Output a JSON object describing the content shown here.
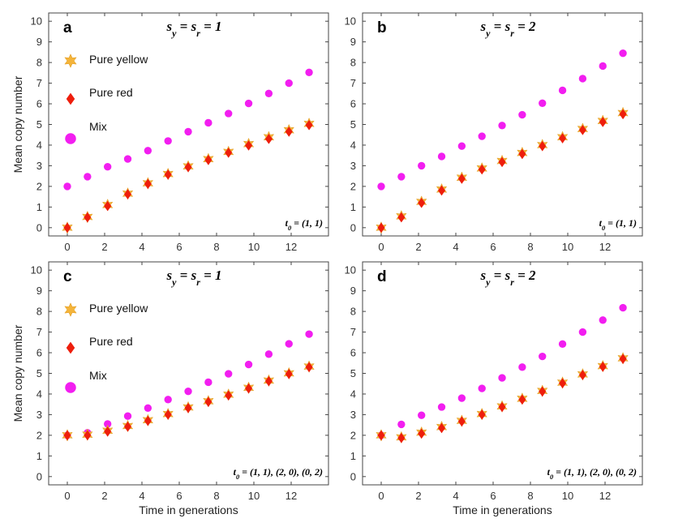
{
  "chart_data": [
    {
      "type": "scatter",
      "panel_label": "a",
      "title": "s_y = s_r = 1",
      "annotation": "t_0 = (1, 1)",
      "xlabel": "",
      "ylabel": "Mean copy number",
      "xlim": [
        -1,
        14
      ],
      "ylim": [
        -0.4,
        10.4
      ],
      "xticks": [
        0,
        2,
        4,
        6,
        8,
        10,
        12
      ],
      "yticks": [
        0,
        1,
        2,
        3,
        4,
        5,
        6,
        7,
        8,
        9,
        10
      ],
      "legend": [
        "Pure yellow",
        "Pure red",
        "Mix"
      ],
      "x": [
        0,
        1.08,
        2.16,
        3.24,
        4.32,
        5.4,
        6.48,
        7.56,
        8.64,
        9.72,
        10.8,
        11.88,
        12.96
      ],
      "series": [
        {
          "name": "Pure yellow",
          "values": [
            0,
            0.52,
            1.1,
            1.65,
            2.15,
            2.6,
            2.97,
            3.32,
            3.67,
            4.05,
            4.38,
            4.72,
            5.03
          ]
        },
        {
          "name": "Pure red",
          "values": [
            0,
            0.5,
            1.05,
            1.62,
            2.12,
            2.57,
            2.93,
            3.28,
            3.63,
            3.98,
            4.3,
            4.65,
            4.97
          ]
        },
        {
          "name": "Mix",
          "values": [
            2,
            2.47,
            2.95,
            3.33,
            3.73,
            4.2,
            4.65,
            5.08,
            5.53,
            6.02,
            6.5,
            7.0,
            7.52
          ]
        }
      ]
    },
    {
      "type": "scatter",
      "panel_label": "b",
      "title": "s_y = s_r = 2",
      "annotation": "t_0 = (1, 1)",
      "xlabel": "",
      "ylabel": "",
      "xlim": [
        -1,
        14
      ],
      "ylim": [
        -0.4,
        10.4
      ],
      "xticks": [
        0,
        2,
        4,
        6,
        8,
        10,
        12
      ],
      "yticks": [
        0,
        1,
        2,
        3,
        4,
        5,
        6,
        7,
        8,
        9,
        10
      ],
      "legend": [],
      "x": [
        0,
        1.08,
        2.16,
        3.24,
        4.32,
        5.4,
        6.48,
        7.56,
        8.64,
        9.72,
        10.8,
        11.88,
        12.96
      ],
      "series": [
        {
          "name": "Pure yellow",
          "values": [
            0,
            0.55,
            1.25,
            1.85,
            2.42,
            2.87,
            3.23,
            3.62,
            4.0,
            4.38,
            4.78,
            5.17,
            5.55
          ]
        },
        {
          "name": "Pure red",
          "values": [
            0,
            0.5,
            1.2,
            1.8,
            2.37,
            2.82,
            3.18,
            3.57,
            3.95,
            4.33,
            4.73,
            5.12,
            5.5
          ]
        },
        {
          "name": "Mix",
          "values": [
            2,
            2.47,
            3.0,
            3.45,
            3.95,
            4.43,
            4.95,
            5.47,
            6.03,
            6.65,
            7.22,
            7.83,
            8.45
          ]
        }
      ]
    },
    {
      "type": "scatter",
      "panel_label": "c",
      "title": "s_y = s_r = 1",
      "annotation": "t_0 = (1, 1), (2, 0), (0, 2)",
      "xlabel": "Time in generations",
      "ylabel": "Mean copy number",
      "xlim": [
        -1,
        14
      ],
      "ylim": [
        -0.4,
        10.4
      ],
      "xticks": [
        0,
        2,
        4,
        6,
        8,
        10,
        12
      ],
      "yticks": [
        0,
        1,
        2,
        3,
        4,
        5,
        6,
        7,
        8,
        9,
        10
      ],
      "legend": [
        "Pure yellow",
        "Pure red",
        "Mix"
      ],
      "x": [
        0,
        1.08,
        2.16,
        3.24,
        4.32,
        5.4,
        6.48,
        7.56,
        8.64,
        9.72,
        10.8,
        11.88,
        12.96
      ],
      "series": [
        {
          "name": "Pure yellow",
          "values": [
            2,
            2.03,
            2.22,
            2.45,
            2.73,
            3.03,
            3.35,
            3.65,
            3.97,
            4.3,
            4.65,
            5.0,
            5.33
          ]
        },
        {
          "name": "Pure red",
          "values": [
            2,
            2.0,
            2.18,
            2.42,
            2.7,
            3.0,
            3.32,
            3.62,
            3.93,
            4.27,
            4.62,
            4.97,
            5.3
          ]
        },
        {
          "name": "Mix",
          "values": [
            2,
            2.12,
            2.55,
            2.93,
            3.32,
            3.73,
            4.13,
            4.57,
            4.98,
            5.43,
            5.93,
            6.43,
            6.9
          ]
        }
      ]
    },
    {
      "type": "scatter",
      "panel_label": "d",
      "title": "s_y = s_r = 2",
      "annotation": "t_0 = (1, 1), (2, 0), (0, 2)",
      "xlabel": "Time in generations",
      "ylabel": "",
      "xlim": [
        -1,
        14
      ],
      "ylim": [
        -0.4,
        10.4
      ],
      "xticks": [
        0,
        2,
        4,
        6,
        8,
        10,
        12
      ],
      "yticks": [
        0,
        1,
        2,
        3,
        4,
        5,
        6,
        7,
        8,
        9,
        10
      ],
      "legend": [],
      "x": [
        0,
        1.08,
        2.16,
        3.24,
        4.32,
        5.4,
        6.48,
        7.56,
        8.64,
        9.72,
        10.8,
        11.88,
        12.96
      ],
      "series": [
        {
          "name": "Pure yellow",
          "values": [
            2,
            1.9,
            2.13,
            2.4,
            2.7,
            3.03,
            3.4,
            3.77,
            4.15,
            4.55,
            4.95,
            5.35,
            5.73
          ]
        },
        {
          "name": "Pure red",
          "values": [
            2,
            1.87,
            2.08,
            2.35,
            2.67,
            3.0,
            3.37,
            3.73,
            4.12,
            4.52,
            4.92,
            5.32,
            5.7
          ]
        },
        {
          "name": "Mix",
          "values": [
            2,
            2.53,
            2.97,
            3.37,
            3.8,
            4.27,
            4.78,
            5.3,
            5.82,
            6.42,
            7.0,
            7.58,
            8.18
          ]
        }
      ]
    }
  ],
  "colors": {
    "yellow": "#f4b43a",
    "red": "#ee1e0c",
    "mix": "#f21ef0",
    "axis": "#444444"
  }
}
